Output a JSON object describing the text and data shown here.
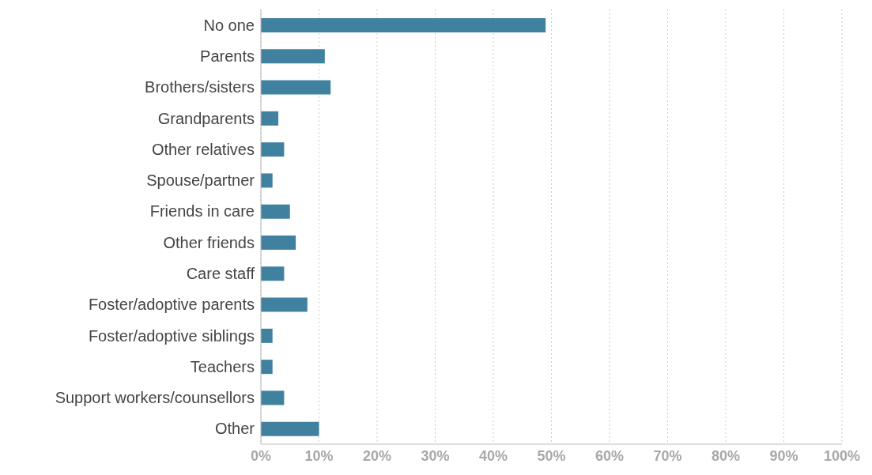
{
  "chart_data": {
    "type": "bar",
    "orientation": "horizontal",
    "categories": [
      "No one",
      "Parents",
      "Brothers/sisters",
      "Grandparents",
      "Other relatives",
      "Spouse/partner",
      "Friends in care",
      "Other friends",
      "Care staff",
      "Foster/adoptive parents",
      "Foster/adoptive siblings",
      "Teachers",
      "Support workers/counsellors",
      "Other"
    ],
    "values": [
      49,
      11,
      12,
      3,
      4,
      2,
      5,
      6,
      4,
      8,
      2,
      2,
      4,
      10
    ],
    "color": "#3f819f",
    "xlim": [
      0,
      100
    ],
    "xticks": [
      {
        "value": 0,
        "label": "0%"
      },
      {
        "value": 10,
        "label": "10%"
      },
      {
        "value": 20,
        "label": "20%"
      },
      {
        "value": 30,
        "label": "30%"
      },
      {
        "value": 40,
        "label": "40%"
      },
      {
        "value": 50,
        "label": "50%"
      },
      {
        "value": 60,
        "label": "60%"
      },
      {
        "value": 70,
        "label": "70%"
      },
      {
        "value": 80,
        "label": "80%"
      },
      {
        "value": 90,
        "label": "90%"
      },
      {
        "value": 100,
        "label": "100%"
      }
    ],
    "grid": "x"
  }
}
